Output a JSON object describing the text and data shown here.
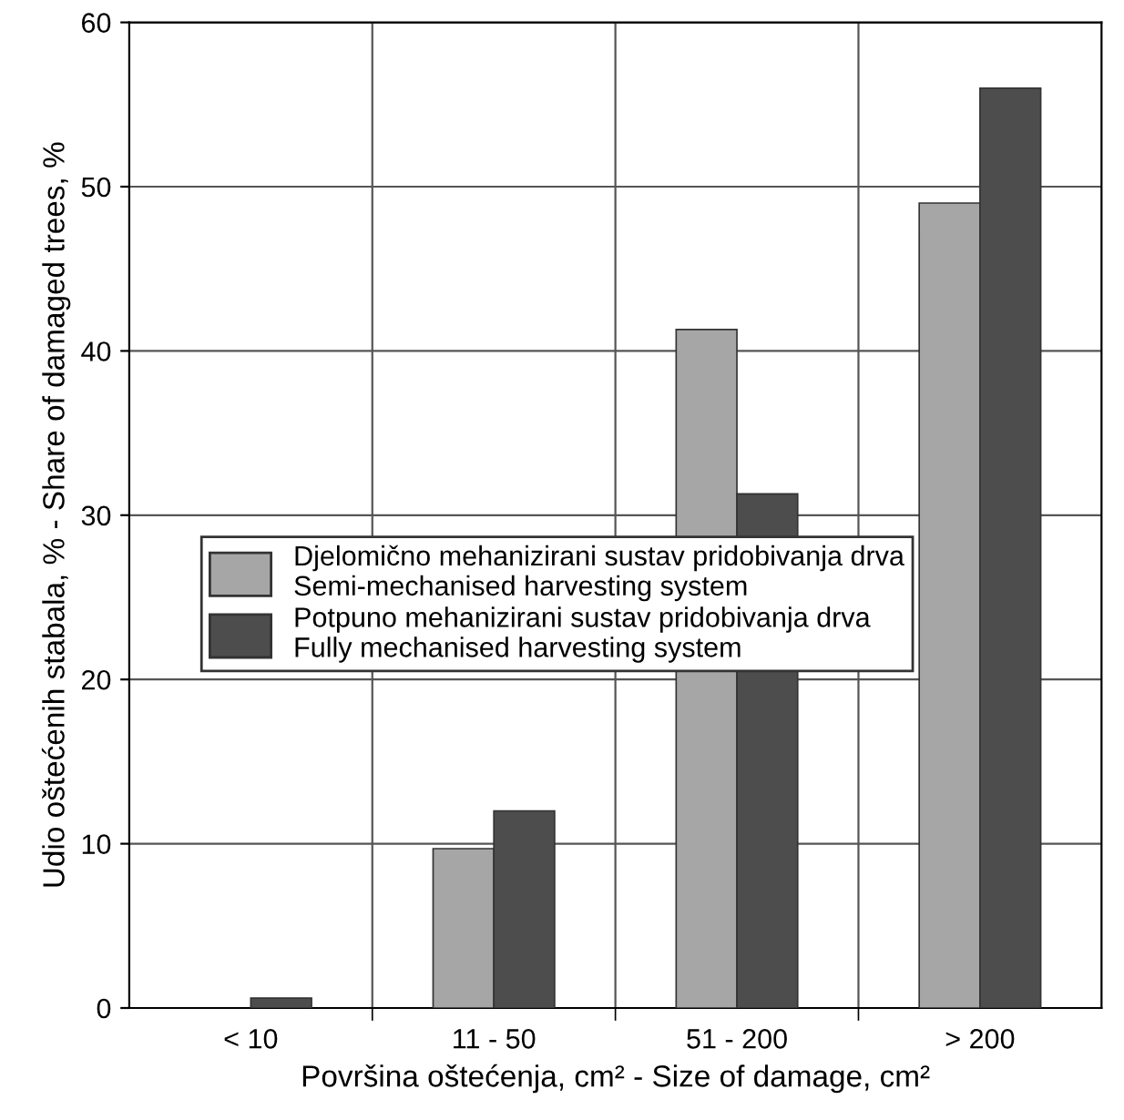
{
  "chart_data": {
    "type": "bar",
    "xlabel": "Površina oštećenja, cm² - Size of damage, cm²",
    "ylabel": "Udio oštećenih stabala, % - Share of damaged trees, %",
    "categories": [
      "< 10",
      "11 - 50",
      "51 - 200",
      "> 200"
    ],
    "series": [
      {
        "name": "Djelomično mehanizirani sustav pridobivanja drva\nSemi-mechanised harvesting system",
        "color": "#a6a6a6",
        "values": [
          null,
          9.7,
          41.3,
          49
        ]
      },
      {
        "name": "Potpuno mehanizirani sustav pridobivanja drva\nFully mechanised harvesting system",
        "color": "#4d4d4d",
        "values": [
          0.6,
          12,
          31.3,
          56
        ]
      }
    ],
    "ylim": [
      0,
      60
    ],
    "yticks": [
      0,
      10,
      20,
      30,
      40,
      50,
      60
    ],
    "grid": true,
    "legend": "left"
  }
}
